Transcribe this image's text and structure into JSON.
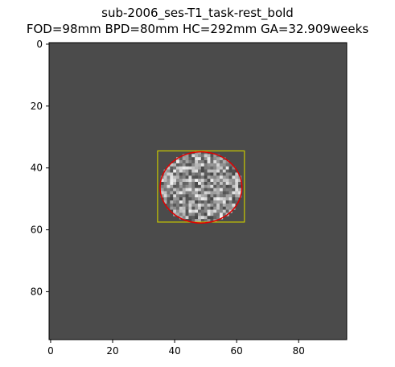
{
  "figure": {
    "title_line1": "sub-2006_ses-T1_task-rest_bold",
    "title_line2": "FOD=98mm BPD=80mm HC=292mm GA=32.909weeks"
  },
  "image": {
    "extent": [
      0,
      96
    ],
    "background_gray": "#4b4b4b",
    "brain_region": {
      "x_min": 35,
      "x_max": 63,
      "y_min": 35,
      "y_max": 58
    },
    "bounding_box_color": "#c8c800",
    "ellipse_color": "#e00000",
    "ellipse_center": [
      48.5,
      46.3
    ],
    "ellipse_radii": [
      13.2,
      11.5
    ]
  },
  "axes": {
    "x_ticks": [
      "0",
      "20",
      "40",
      "60",
      "80"
    ],
    "y_ticks": [
      "0",
      "20",
      "40",
      "60",
      "80"
    ]
  }
}
